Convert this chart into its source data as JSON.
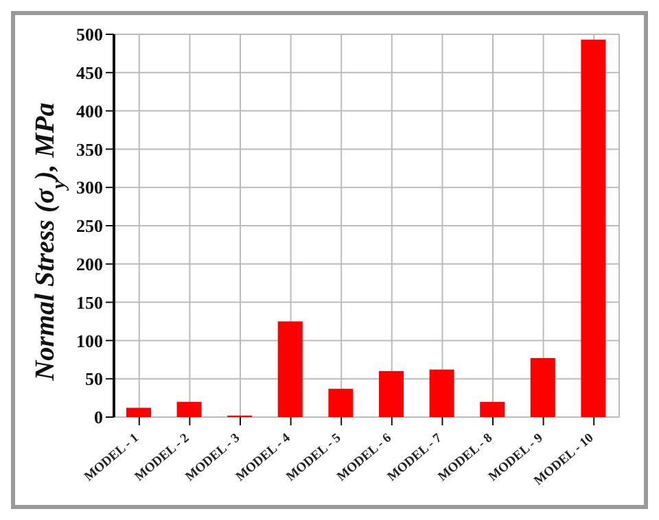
{
  "chart_data": {
    "type": "bar",
    "ylabel": "Normal Stress (σ$_{y}$), MPa",
    "categories": [
      "MODEL - 1",
      "MODEL - 2",
      "MODEL - 3",
      "MODEL - 4",
      "MODEL - 5",
      "MODEL - 6",
      "MODEL - 7",
      "MODEL - 8",
      "MODEL - 9",
      "MODEL - 10"
    ],
    "values": [
      12,
      20,
      2,
      125,
      37,
      60,
      62,
      20,
      77,
      493
    ],
    "color": "#ff0000",
    "ylim": [
      0,
      500
    ],
    "yticks": [
      0,
      50,
      100,
      150,
      200,
      250,
      300,
      350,
      400,
      450,
      500
    ],
    "grid": true
  }
}
